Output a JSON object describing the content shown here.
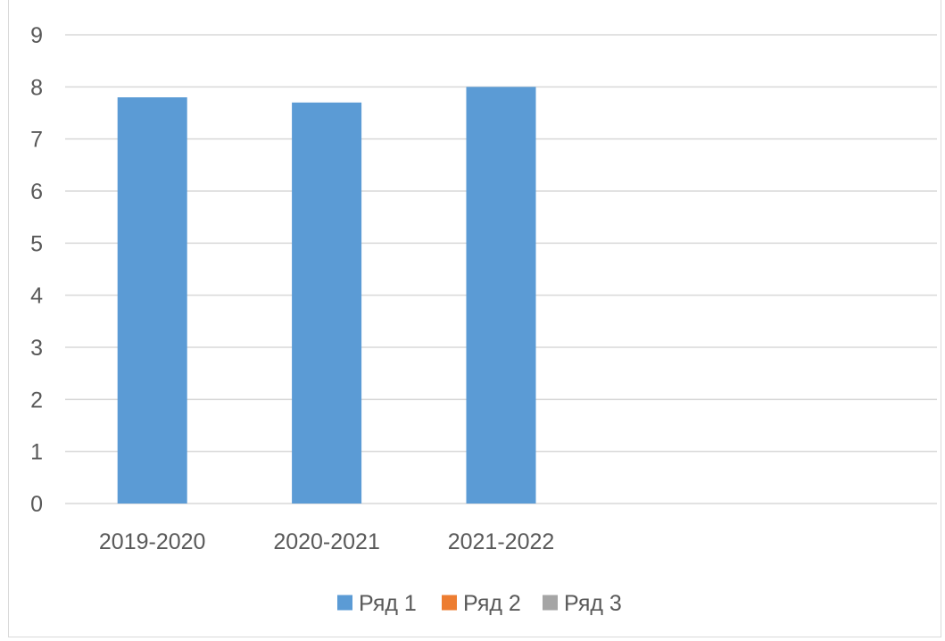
{
  "chart_data": {
    "type": "bar",
    "title": "",
    "xlabel": "",
    "ylabel": "",
    "categories": [
      "2019-2020",
      "2020-2021",
      "2021-2022"
    ],
    "series": [
      {
        "name": "Ряд 1",
        "color": "#5b9bd5",
        "values": [
          7.8,
          7.7,
          8.0
        ]
      },
      {
        "name": "Ряд 2",
        "color": "#ed7d31",
        "values": [
          null,
          null,
          null
        ]
      },
      {
        "name": "Ряд 3",
        "color": "#a5a5a5",
        "values": [
          null,
          null,
          null
        ]
      }
    ],
    "category_slots": 5,
    "ylim": [
      0,
      9
    ],
    "yticks": [
      0,
      1,
      2,
      3,
      4,
      5,
      6,
      7,
      8,
      9
    ],
    "grid": true,
    "gridline_color": "#d9d9d9",
    "legend": "bottom"
  }
}
